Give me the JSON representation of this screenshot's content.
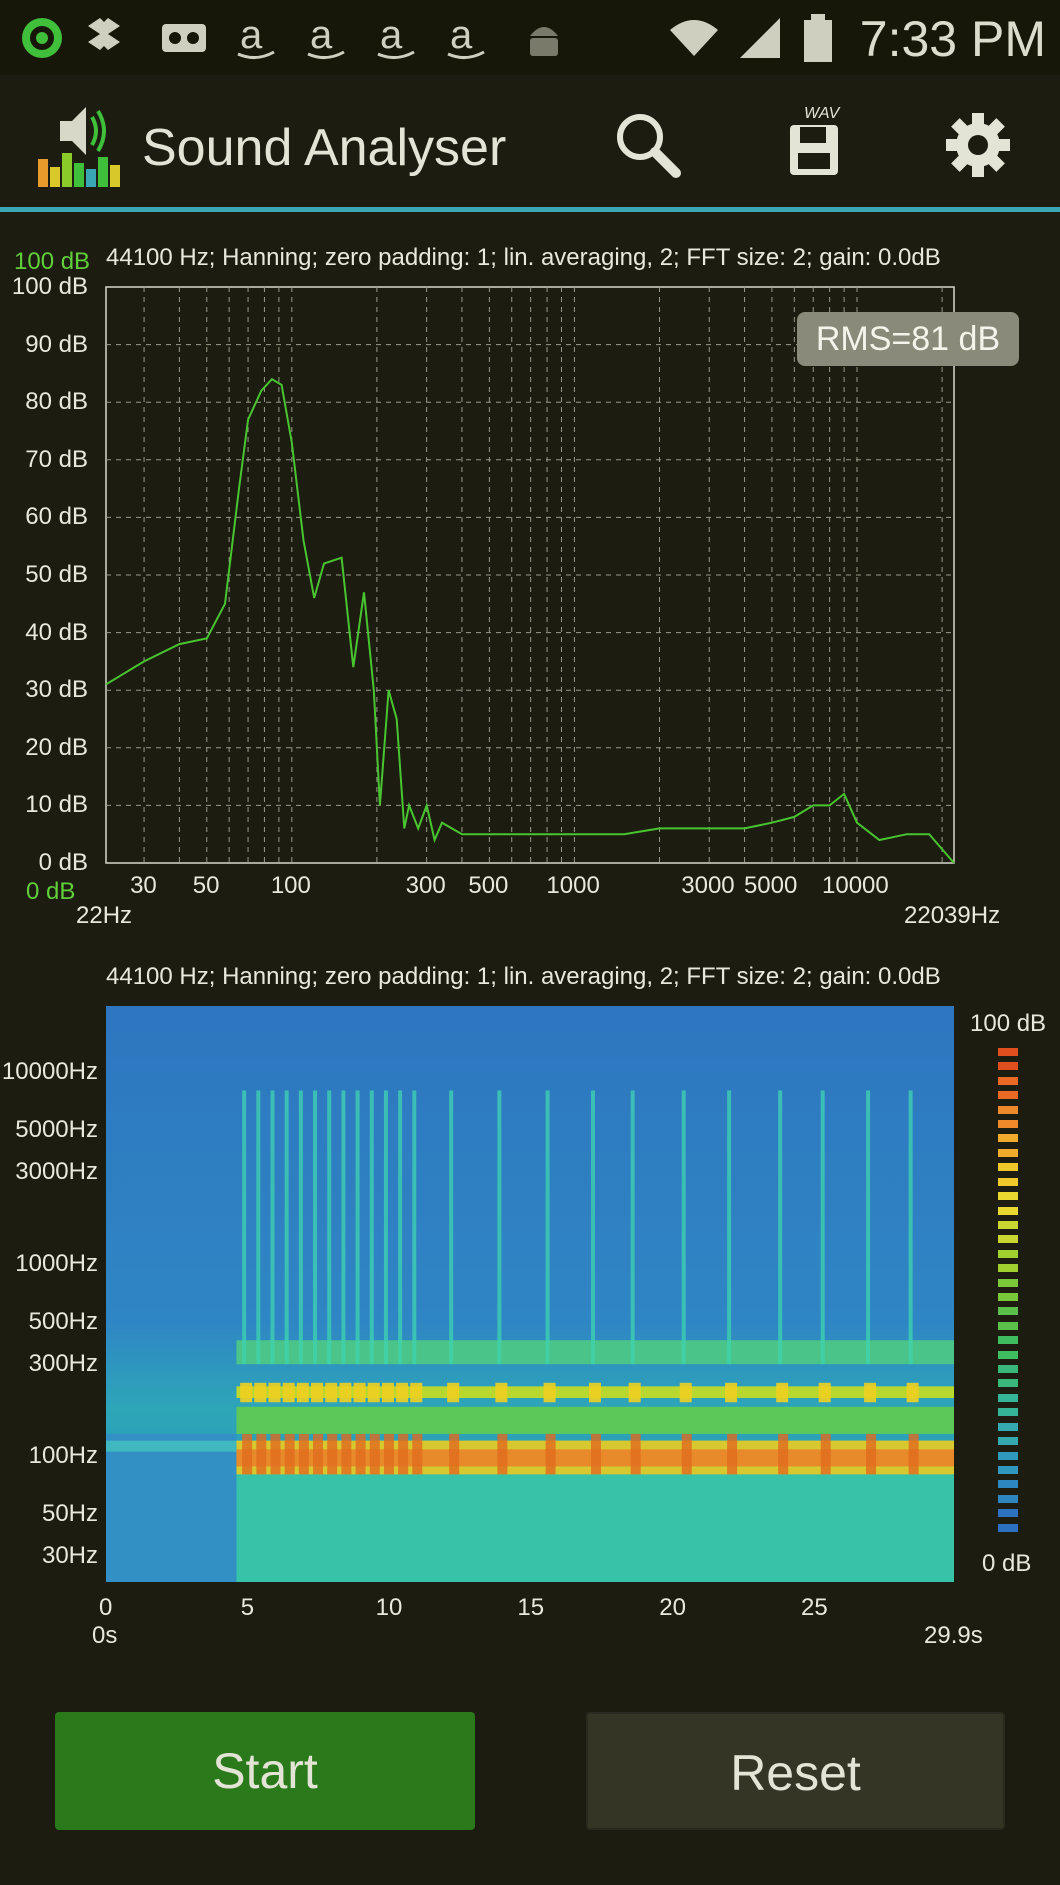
{
  "status_bar": {
    "time": "7:33 PM",
    "icons": [
      "eye-app-icon",
      "dropbox-icon",
      "voicemail-icon",
      "amazon-icon",
      "amazon-icon",
      "amazon-icon",
      "amazon-icon",
      "android-icon",
      "wifi-icon",
      "signal-icon",
      "battery-icon"
    ]
  },
  "app_bar": {
    "title": "Sound Analyser",
    "logo_icon": "speaker-equalizer-icon",
    "actions": [
      {
        "name": "search-icon"
      },
      {
        "name": "save-wav-icon",
        "badge": "WAV"
      },
      {
        "name": "settings-icon"
      }
    ]
  },
  "spectrum": {
    "info": "44100 Hz; Hanning; zero padding: 1; lin. averaging, 2; FFT size: 2; gain: 0.0dB",
    "top_level_label": "100 dB",
    "bottom_level_label": "0 dB",
    "rms": "RMS=81 dB",
    "y_ticks": [
      "100 dB",
      "90 dB",
      "80 dB",
      "70 dB",
      "60 dB",
      "50 dB",
      "40 dB",
      "30 dB",
      "20 dB",
      "10 dB",
      "0 dB"
    ],
    "x_ticks": [
      "30",
      "50",
      "100",
      "300",
      "500",
      "1000",
      "3000",
      "5000",
      "10000"
    ],
    "x_min_label": "22Hz",
    "x_max_label": "22039Hz",
    "line_color": "#49c431"
  },
  "chart_data": {
    "type": "line",
    "title": "44100 Hz; Hanning; zero padding: 1; lin. averaging, 2; FFT size: 2; gain: 0.0dB",
    "xlabel": "",
    "ylabel": "",
    "x_scale": "log",
    "xlim": [
      22,
      22039
    ],
    "ylim": [
      0,
      100
    ],
    "grid": true,
    "series": [
      {
        "x": [
          22,
          30,
          40,
          50,
          58,
          65,
          70,
          78,
          85,
          92,
          100,
          110,
          120,
          130,
          150,
          165,
          180,
          195,
          205,
          220,
          235,
          250,
          260,
          280,
          300,
          320,
          340,
          400,
          500,
          700,
          1000,
          1500,
          2000,
          3000,
          4000,
          5000,
          6000,
          7000,
          8000,
          9000,
          10000,
          12000,
          15000,
          18000,
          22039
        ],
        "y": [
          31,
          35,
          38,
          39,
          45,
          65,
          77,
          82,
          84,
          83,
          73,
          56,
          46,
          52,
          53,
          34,
          47,
          30,
          10,
          30,
          25,
          6,
          10,
          6,
          10,
          4,
          7,
          5,
          5,
          5,
          5,
          5,
          6,
          6,
          6,
          7,
          8,
          10,
          10,
          12,
          7,
          4,
          5,
          5,
          0
        ]
      }
    ]
  },
  "spectrogram": {
    "info": "44100 Hz; Hanning; zero padding: 1; lin. averaging, 2; FFT size: 2; gain: 0.0dB",
    "y_ticks": [
      "10000Hz",
      "5000Hz",
      "3000Hz",
      "1000Hz",
      "500Hz",
      "300Hz",
      "100Hz",
      "50Hz",
      "30Hz"
    ],
    "x_ticks": [
      "0",
      "5",
      "10",
      "15",
      "20",
      "25"
    ],
    "x_min_label": "0s",
    "x_max_label": "29.9s",
    "colorbar_top": "100 dB",
    "colorbar_bottom": "0 dB"
  },
  "buttons": {
    "start": "Start",
    "reset": "Reset"
  }
}
